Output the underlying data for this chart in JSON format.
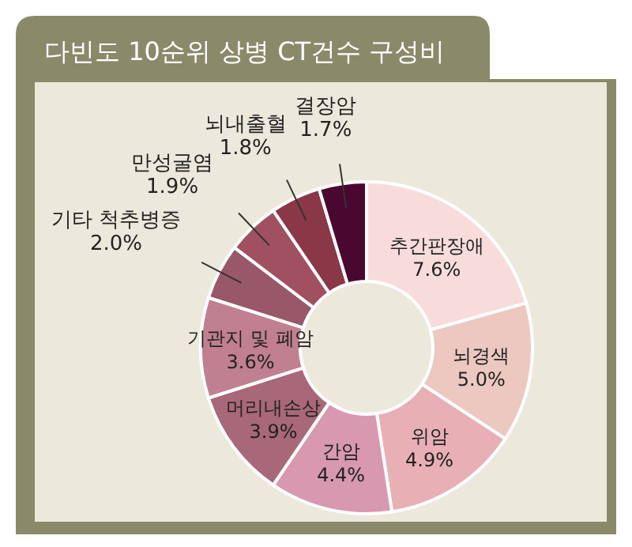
{
  "chart_data": {
    "type": "donut",
    "title": "다빈도 10순위 상병 CT건수 구성비",
    "categories": [
      "추간판장애",
      "뇌경색",
      "위암",
      "간암",
      "머리내손상",
      "기관지 및 폐암",
      "기타 척추병증",
      "만성굴염",
      "뇌내출혈",
      "결장암"
    ],
    "values": [
      7.6,
      5.0,
      4.9,
      4.4,
      3.9,
      3.6,
      2.0,
      1.9,
      1.8,
      1.7
    ],
    "value_labels": [
      "7.6%",
      "5.0%",
      "4.9%",
      "4.4%",
      "3.9%",
      "3.6%",
      "2.0%",
      "1.9%",
      "1.8%",
      "1.7%"
    ],
    "colors": [
      "#f8dcdc",
      "#ecc8c0",
      "#e8b0b4",
      "#d898b0",
      "#a86878",
      "#c08090",
      "#985868",
      "#a05060",
      "#8a3848",
      "#4a0830"
    ]
  }
}
